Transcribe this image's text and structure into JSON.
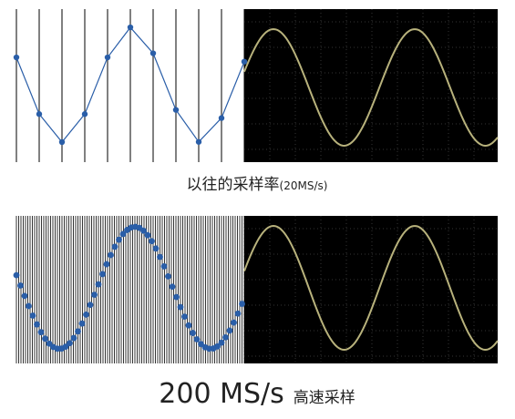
{
  "panels": [
    {
      "caption_main": "以往的采样率",
      "caption_unit": "(20MS/s)"
    },
    {
      "caption_main": "200 MS/s",
      "caption_unit": "高速采样"
    }
  ]
}
